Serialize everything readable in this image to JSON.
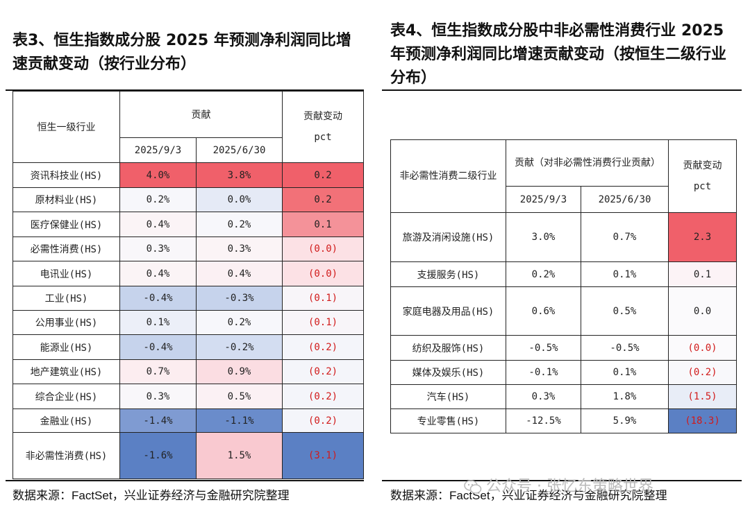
{
  "table3": {
    "title": "表3、恒生指数成分股 2025 年预测净利润同比增速贡献变动（按行业分布）",
    "headers": {
      "industry": "恒生一级行业",
      "contribution": "贡献",
      "date1": "2025/9/3",
      "date2": "2025/6/30",
      "change": "贡献变动",
      "unit": "pct"
    },
    "rows": [
      {
        "name": "资讯科技业(HS)",
        "v1": "4.0%",
        "v2": "3.8%",
        "chg": "0.2",
        "c1": "#f0606a",
        "c2": "#f0606a",
        "cc": "#f0606a",
        "neg": false
      },
      {
        "name": "原材料业(HS)",
        "v1": "0.2%",
        "v2": "0.0%",
        "chg": "0.2",
        "c1": "#f7f7fb",
        "c2": "#e5eaf6",
        "cc": "#f27178",
        "neg": false
      },
      {
        "name": "医疗保健业(HS)",
        "v1": "0.4%",
        "v2": "0.2%",
        "chg": "0.1",
        "c1": "#fbf4f6",
        "c2": "#f7f7fb",
        "cc": "#f49299",
        "neg": false
      },
      {
        "name": "必需性消费(HS)",
        "v1": "0.3%",
        "v2": "0.3%",
        "chg": "(0.0)",
        "c1": "#f9f7fa",
        "c2": "#fbf4f6",
        "cc": "#fce1e5",
        "neg": true
      },
      {
        "name": "电讯业(HS)",
        "v1": "0.4%",
        "v2": "0.4%",
        "chg": "(0.0)",
        "c1": "#fbf4f6",
        "c2": "#fbf0f3",
        "cc": "#fce1e5",
        "neg": true
      },
      {
        "name": "工业(HS)",
        "v1": "-0.4%",
        "v2": "-0.3%",
        "chg": "(0.1)",
        "c1": "#c6d3ec",
        "c2": "#c6d3ec",
        "cc": "#f8f5f9",
        "neg": true
      },
      {
        "name": "公用事业(HS)",
        "v1": "0.1%",
        "v2": "0.2%",
        "chg": "(0.1)",
        "c1": "#eceff8",
        "c2": "#f7f7fb",
        "cc": "#f8f5f9",
        "neg": true
      },
      {
        "name": "能源业(HS)",
        "v1": "-0.4%",
        "v2": "-0.2%",
        "chg": "(0.2)",
        "c1": "#c6d3ec",
        "c2": "#d3ddf1",
        "cc": "#f4f5fa",
        "neg": true
      },
      {
        "name": "地产建筑业(HS)",
        "v1": "0.7%",
        "v2": "0.9%",
        "chg": "(0.2)",
        "c1": "#fcedf0",
        "c2": "#fbdde2",
        "cc": "#f4f5fa",
        "neg": true
      },
      {
        "name": "综合企业(HS)",
        "v1": "0.3%",
        "v2": "0.5%",
        "chg": "(0.2)",
        "c1": "#f9f7fa",
        "c2": "#fbf1f4",
        "cc": "#f4f5fa",
        "neg": true
      },
      {
        "name": "金融业(HS)",
        "v1": "-1.4%",
        "v2": "-1.1%",
        "chg": "(0.2)",
        "c1": "#7f9bd2",
        "c2": "#6a8ccb",
        "cc": "#f4f5fa",
        "neg": true
      },
      {
        "name": "非必需性消费(HS)",
        "v1": "-1.6%",
        "v2": "1.5%",
        "chg": "(3.1)",
        "c1": "#5b80c4",
        "c2": "#f9c9d0",
        "cc": "#5b80c4",
        "neg": true
      }
    ],
    "source": "数据来源：FactSet，兴业证券经济与金融研究院整理"
  },
  "table4": {
    "title": "表4、恒生指数成分股中非必需性消费行业 2025 年预测净利润同比增速贡献变动（按恒生二级行业分布）",
    "headers": {
      "industry": "非必需性消费二级行业",
      "contribution": "贡献（对非必需性消费行业贡献）",
      "date1": "2025/9/3",
      "date2": "2025/6/30",
      "change": "贡献变动",
      "unit": "pct"
    },
    "rows": [
      {
        "name": "旅游及消闲设施(HS)",
        "v1": "3.0%",
        "v2": "0.7%",
        "chg": "2.3",
        "cc": "#f0606a",
        "neg": false
      },
      {
        "name": "支援服务(HS)",
        "v1": "0.2%",
        "v2": "0.1%",
        "chg": "0.1",
        "cc": "#fcf3f6",
        "neg": false
      },
      {
        "name": "家庭电器及用品(HS)",
        "v1": "0.6%",
        "v2": "0.5%",
        "chg": "0.0",
        "cc": "#fbfafc",
        "neg": false
      },
      {
        "name": "纺织及服饰(HS)",
        "v1": "-0.5%",
        "v2": "-0.5%",
        "chg": "(0.0)",
        "cc": "#fbfafc",
        "neg": true
      },
      {
        "name": "媒体及娱乐(HS)",
        "v1": "-0.1%",
        "v2": "0.1%",
        "chg": "(0.2)",
        "cc": "#f8f8fb",
        "neg": true
      },
      {
        "name": "汽车(HS)",
        "v1": "0.3%",
        "v2": "1.8%",
        "chg": "(1.5)",
        "cc": "#e8edf7",
        "neg": true
      },
      {
        "name": "专业零售(HS)",
        "v1": "-12.5%",
        "v2": "5.9%",
        "chg": "(18.3)",
        "cc": "#5b80c4",
        "neg": true
      }
    ],
    "source": "数据来源：FactSet，兴业证券经济与金融研究院整理"
  },
  "watermark": {
    "text": "公众号 · 张忆东策略世界"
  }
}
